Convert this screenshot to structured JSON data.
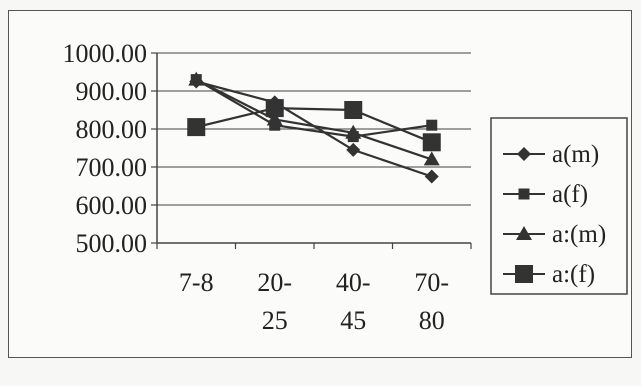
{
  "chart_data": {
    "type": "line",
    "title": "",
    "xlabel": "",
    "ylabel": "",
    "categories": [
      [
        "7-8"
      ],
      [
        "20-",
        "25"
      ],
      [
        "40-",
        "45"
      ],
      [
        "70-",
        "80"
      ]
    ],
    "y_ticks": [
      "1000.00",
      "900.00",
      "800.00",
      "700.00",
      "600.00",
      "500.00"
    ],
    "ylim": [
      500,
      1000
    ],
    "grid": "horizontal",
    "legend_position": "right",
    "series": [
      {
        "name": "a(m)",
        "marker": "diamond",
        "values": [
          925,
          870,
          745,
          675
        ]
      },
      {
        "name": "a(f)",
        "marker": "square",
        "values": [
          930,
          810,
          780,
          810
        ]
      },
      {
        "name": "a:(m)",
        "marker": "triangle",
        "values": [
          930,
          825,
          790,
          720
        ]
      },
      {
        "name": "a:(f)",
        "marker": "square-large",
        "values": [
          805,
          855,
          850,
          765
        ]
      }
    ],
    "line_color": "#333333"
  }
}
